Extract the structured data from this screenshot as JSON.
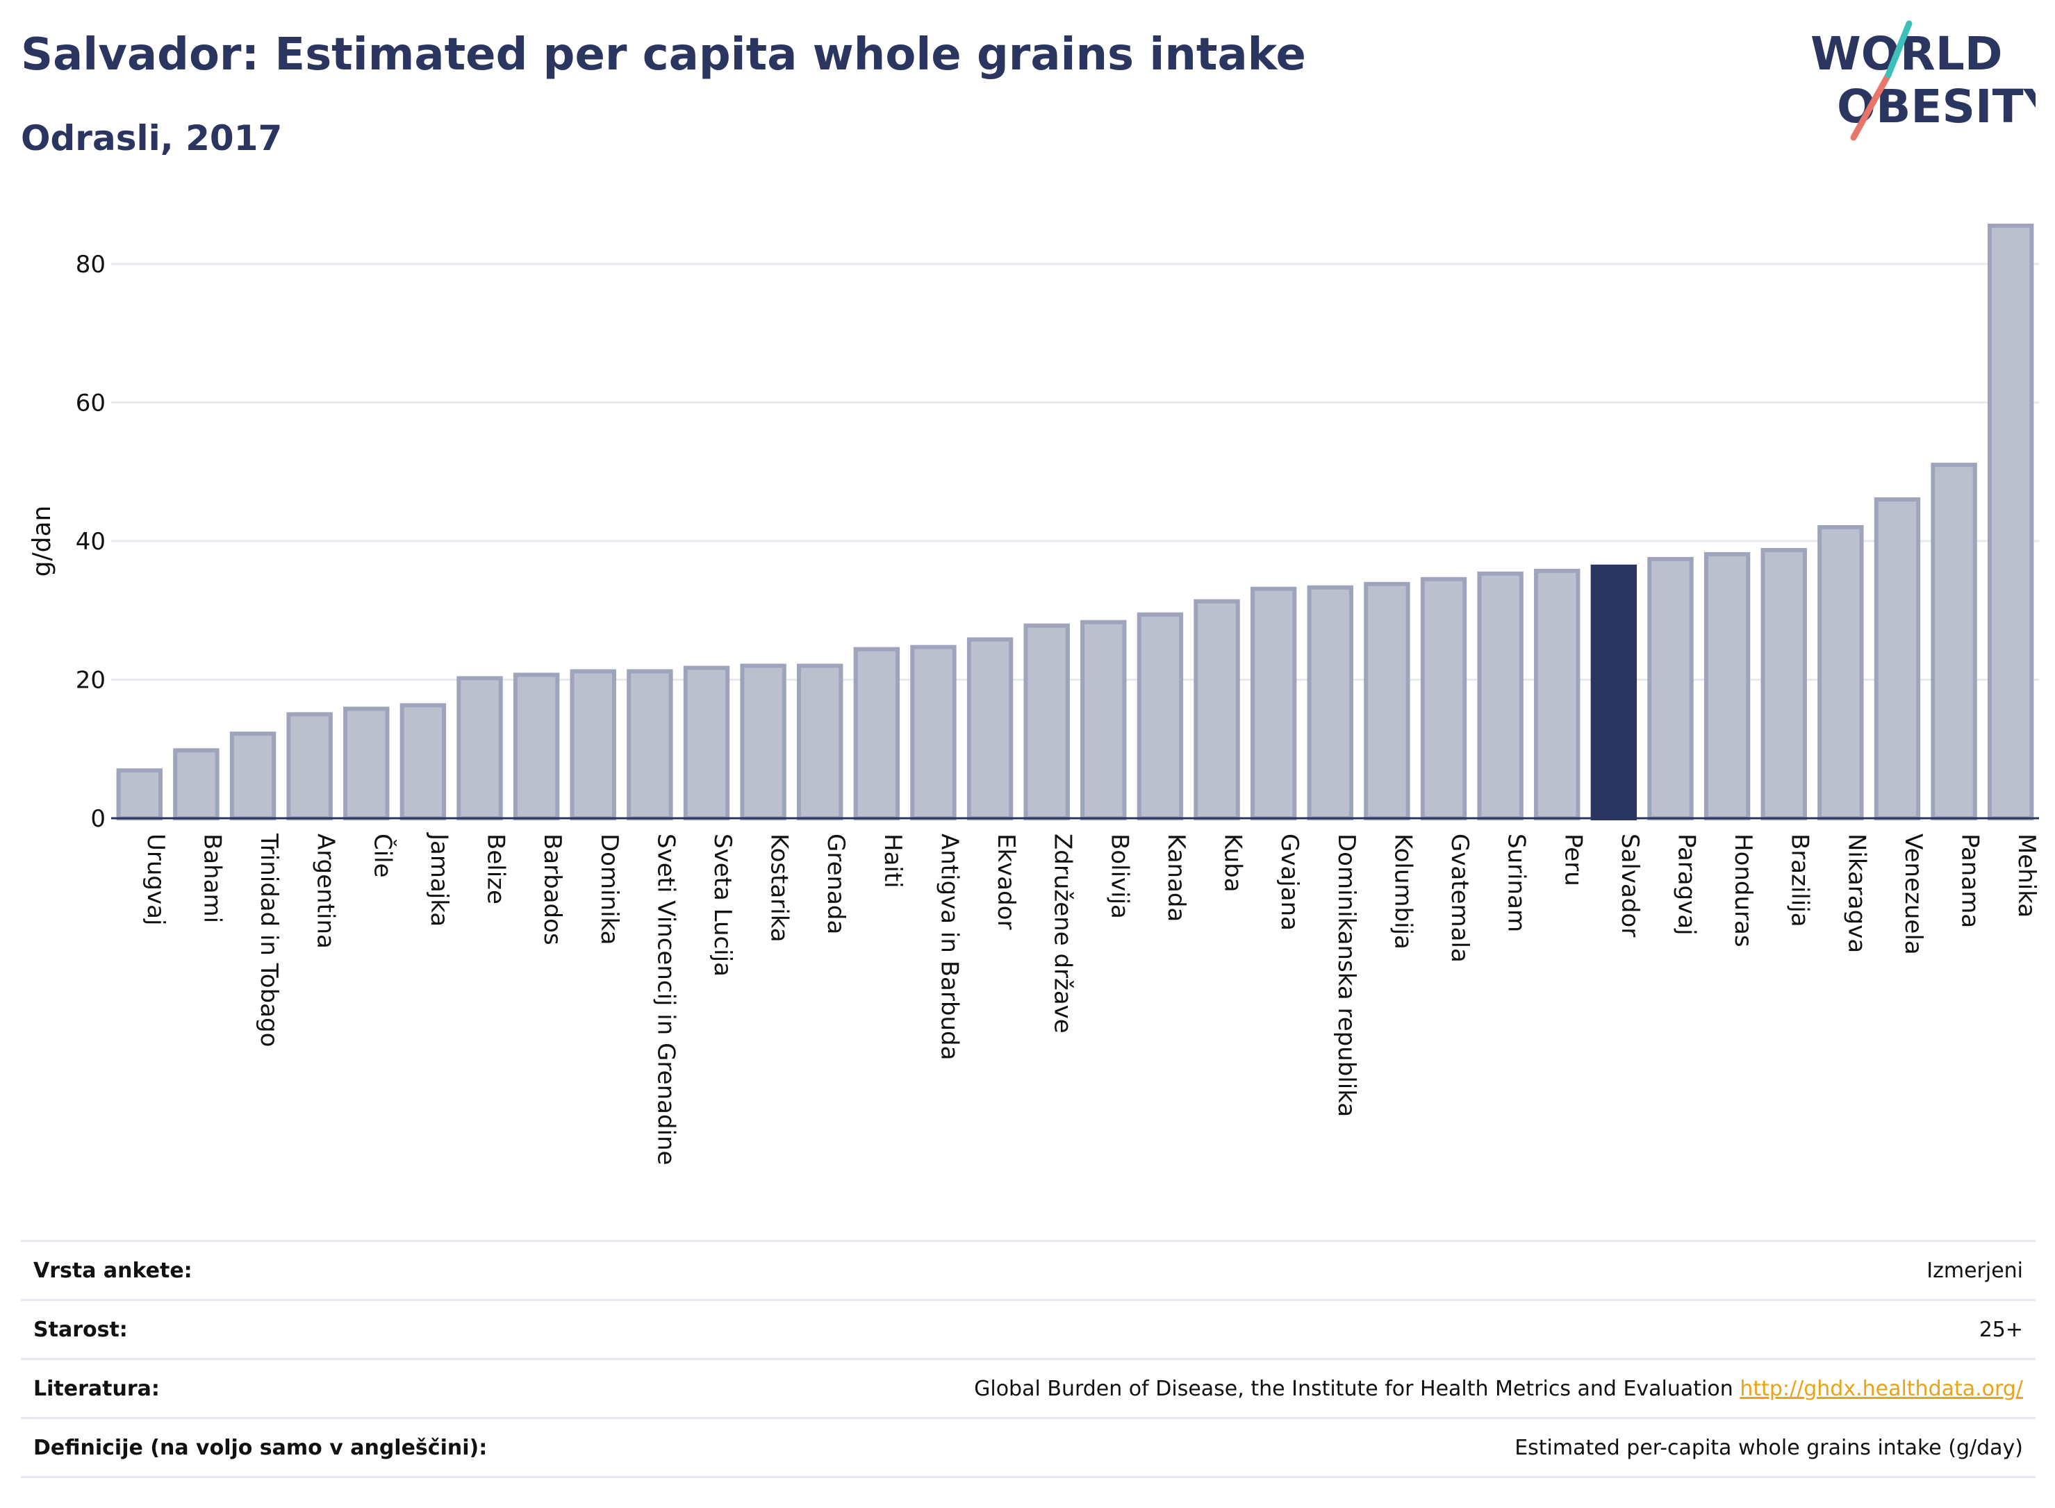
{
  "header": {
    "title": "Salvador: Estimated per capita whole grains intake",
    "subtitle": "Odrasli, 2017",
    "logo_line1": "WORLD",
    "logo_line2": "OBESITY"
  },
  "chart_data": {
    "type": "bar",
    "ylabel": "g/dan",
    "ylim": [
      0,
      88
    ],
    "yticks": [
      0,
      20,
      40,
      60,
      80
    ],
    "highlight": "Salvador",
    "colors": {
      "bar": "#bcc0ce",
      "bar_border": "#9ea4bb",
      "highlight": "#2a3560",
      "grid": "#e8e9ef",
      "axis": "#2a3560"
    },
    "categories": [
      "Urugvaj",
      "Bahami",
      "Trinidad in Tobago",
      "Argentina",
      "Čile",
      "Jamajka",
      "Belize",
      "Barbados",
      "Dominika",
      "Sveti Vincencij in Grenadine",
      "Sveta Lucija",
      "Kostarika",
      "Grenada",
      "Haiti",
      "Antigva in Barbuda",
      "Ekvador",
      "Združene države",
      "Bolivija",
      "Kanada",
      "Kuba",
      "Gvajana",
      "Dominikanska republika",
      "Kolumbija",
      "Gvatemala",
      "Surinam",
      "Peru",
      "Salvador",
      "Paragvaj",
      "Honduras",
      "Brazilija",
      "Nikaragva",
      "Venezuela",
      "Panama",
      "Mehika"
    ],
    "values": [
      6.9,
      9.8,
      12.2,
      15.0,
      15.8,
      16.3,
      20.2,
      20.7,
      21.2,
      21.2,
      21.7,
      22.0,
      22.0,
      24.4,
      24.7,
      25.8,
      27.8,
      28.3,
      29.4,
      31.3,
      33.1,
      33.3,
      33.8,
      34.5,
      35.3,
      35.7,
      36.3,
      37.4,
      38.1,
      38.7,
      42.0,
      46.0,
      51.0,
      85.5
    ]
  },
  "info": {
    "rows": [
      {
        "label": "Vrsta ankete:",
        "value": "Izmerjeni"
      },
      {
        "label": "Starost:",
        "value": "25+"
      },
      {
        "label": "Literatura:",
        "value": "Global Burden of Disease, the Institute for Health Metrics and Evaluation",
        "link": "http://ghdx.healthdata.org/"
      },
      {
        "label": "Definicije (na voljo samo v angleščini):",
        "value": "Estimated per-capita whole grains intake (g/day)"
      }
    ]
  }
}
